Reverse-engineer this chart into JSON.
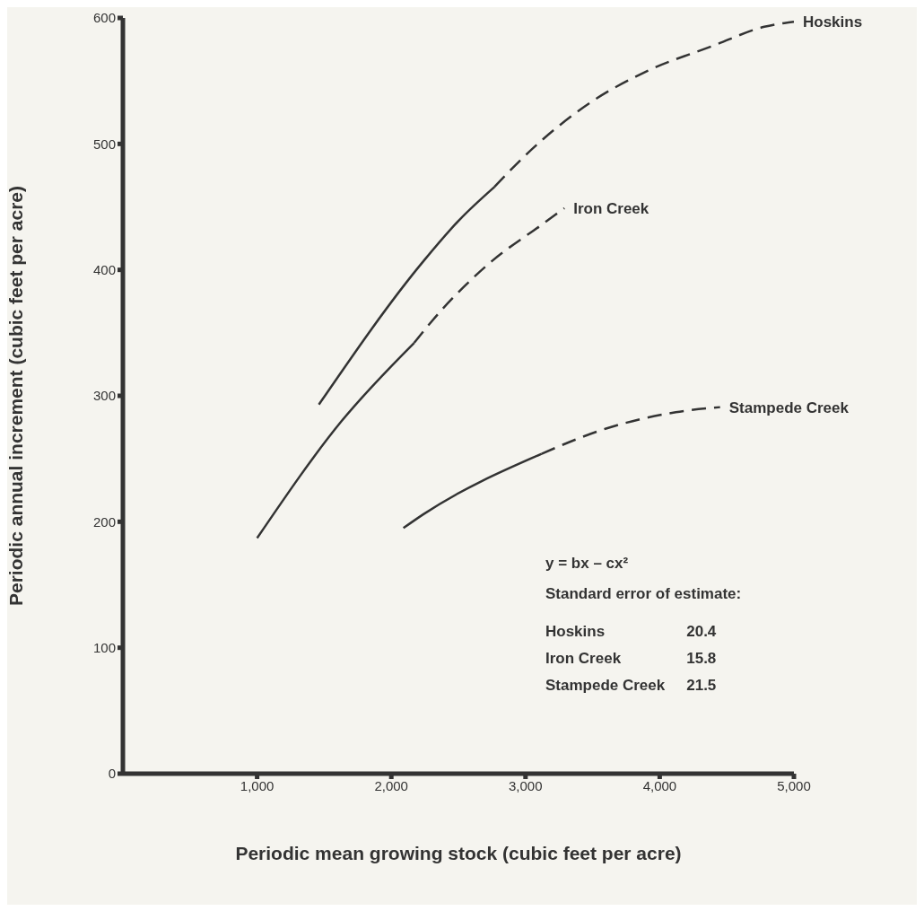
{
  "chart_data": {
    "type": "line",
    "xlabel": "Periodic mean growing stock (cubic feet per acre)",
    "ylabel": "Periodic annual increment (cubic feet per acre)",
    "xlim": [
      0,
      5000
    ],
    "xticks": [
      {
        "value": 1000,
        "label": "1,000"
      },
      {
        "value": 2000,
        "label": "2,000"
      },
      {
        "value": 3000,
        "label": "3,000"
      },
      {
        "value": 4000,
        "label": "4,000"
      },
      {
        "value": 5000,
        "label": "5,000"
      }
    ],
    "ylim": [
      0,
      600
    ],
    "yticks": [
      0,
      100,
      200,
      300,
      400,
      500,
      600
    ],
    "marker": "none",
    "series": [
      {
        "color": "#333333",
        "line_style": "solid",
        "x": [
          1460,
          2240,
          2510,
          2770
        ],
        "values": [
          293,
          407,
          440,
          466
        ]
      },
      {
        "name": "Hoskins",
        "color": "#333333",
        "line_style": "dashed",
        "x": [
          2770,
          3000,
          3500,
          3890,
          4400,
          4780,
          5000
        ],
        "values": [
          466,
          491,
          534,
          557,
          578,
          593,
          597
        ]
      },
      {
        "color": "#333333",
        "line_style": "solid",
        "x": [
          1000,
          1630,
          2170
        ],
        "values": [
          187,
          280,
          342
        ]
      },
      {
        "name": "Iron Creek",
        "color": "#333333",
        "line_style": "dashed",
        "x": [
          2170,
          2300,
          2750,
          3110,
          3290
        ],
        "values": [
          342,
          359,
          407,
          435,
          449
        ]
      },
      {
        "color": "#333333",
        "line_style": "solid",
        "x": [
          2090,
          2240,
          3120
        ],
        "values": [
          195,
          206,
          254
        ]
      },
      {
        "name": "Stampede Creek",
        "color": "#333333",
        "line_style": "dashed",
        "x": [
          3120,
          3600,
          4120,
          4450
        ],
        "values": [
          254,
          274,
          287,
          291
        ]
      }
    ],
    "annotations": [
      "y = bx – cx²",
      "Standard error of estimate:",
      "Hoskins",
      "20.4",
      "Iron Creek",
      "15.8",
      "Stampede Creek",
      "21.5"
    ]
  }
}
